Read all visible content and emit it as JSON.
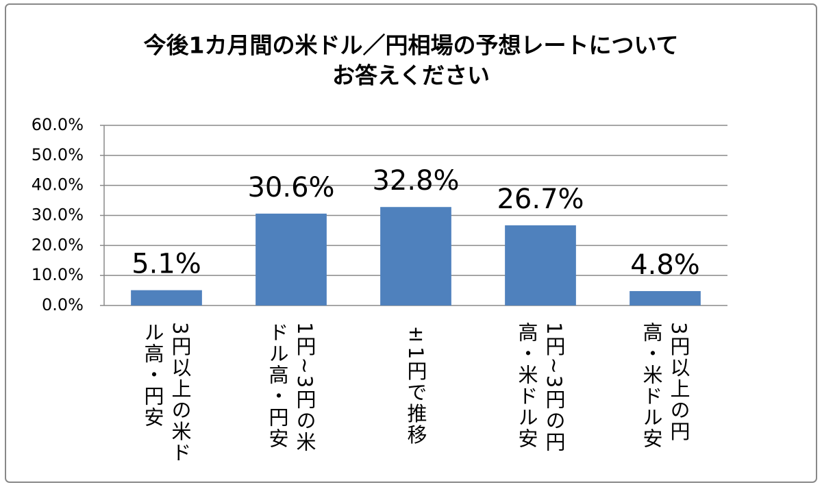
{
  "chart_data": {
    "type": "bar",
    "title": [
      "今後1カ月間の米ドル／円相場の予想レートについて",
      "お答えください"
    ],
    "categories": [
      "3円以上の米ドル高・円安",
      "1円~3円の米ドル高・円安",
      "±1円で推移",
      "1円~3円の円高・米ドル安",
      "3円以上の円高・米ドル安"
    ],
    "values": [
      5.1,
      30.6,
      32.8,
      26.7,
      4.8
    ],
    "value_labels": [
      "5.1%",
      "30.6%",
      "32.8%",
      "26.7%",
      "4.8%"
    ],
    "color": "#4f81bd",
    "ylim": [
      0,
      60
    ],
    "yticks": [
      {
        "value": 0,
        "label": "0.0%"
      },
      {
        "value": 10,
        "label": "10.0%"
      },
      {
        "value": 20,
        "label": "20.0%"
      },
      {
        "value": 30,
        "label": "30.0%"
      },
      {
        "value": 40,
        "label": "40.0%"
      },
      {
        "value": 50,
        "label": "50.0%"
      },
      {
        "value": 60,
        "label": "60.0%"
      }
    ],
    "grid": true
  }
}
